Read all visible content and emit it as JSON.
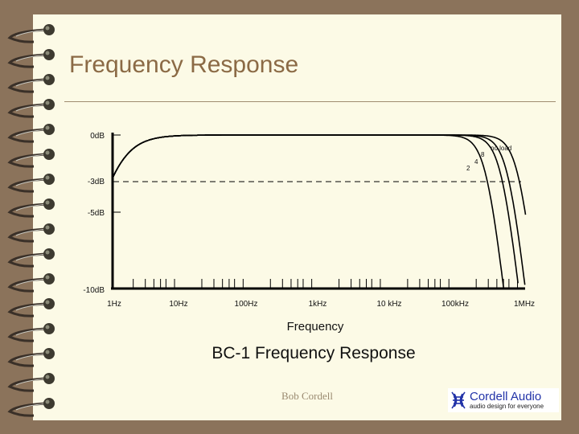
{
  "slide": {
    "title": "Frequency Response",
    "author": "Bob Cordell",
    "logo": {
      "name": "Cordell Audio",
      "tagline": "audio design for everyone",
      "icon": "speaker-waves-icon",
      "color": "#2233a8"
    },
    "colors": {
      "background": "#8b735b",
      "page": "#fcfae6",
      "title": "#8b6a45",
      "rule": "#a08c70"
    }
  },
  "chart_data": {
    "type": "line",
    "title": "BC-1 Frequency Response",
    "xlabel": "Frequency",
    "ylabel": "",
    "xscale": "log",
    "x_ticks": [
      "1Hz",
      "10Hz",
      "100Hz",
      "1kHz",
      "10 kHz",
      "100kHz",
      "1MHz"
    ],
    "y_ticks": [
      "0dB",
      "-3dB",
      "-5dB",
      "-10dB"
    ],
    "ylim": [
      -10,
      0
    ],
    "xlim_hz": [
      1,
      1000000
    ],
    "reference_line": {
      "label": "-3dB",
      "value": -3,
      "style": "dashed"
    },
    "series": [
      {
        "name": "no load",
        "label": "no load",
        "f3db_low_hz": 1,
        "f3db_high_hz": 850000
      },
      {
        "name": "8 ohm",
        "label": "8",
        "f3db_low_hz": 1,
        "f3db_high_hz": 600000
      },
      {
        "name": "4 ohm",
        "label": "4",
        "f3db_low_hz": 1,
        "f3db_high_hz": 480000
      },
      {
        "name": "2 ohm",
        "label": "2",
        "f3db_low_hz": 1,
        "f3db_high_hz": 290000
      }
    ],
    "grid": false,
    "legend": "inline labels near curves"
  }
}
